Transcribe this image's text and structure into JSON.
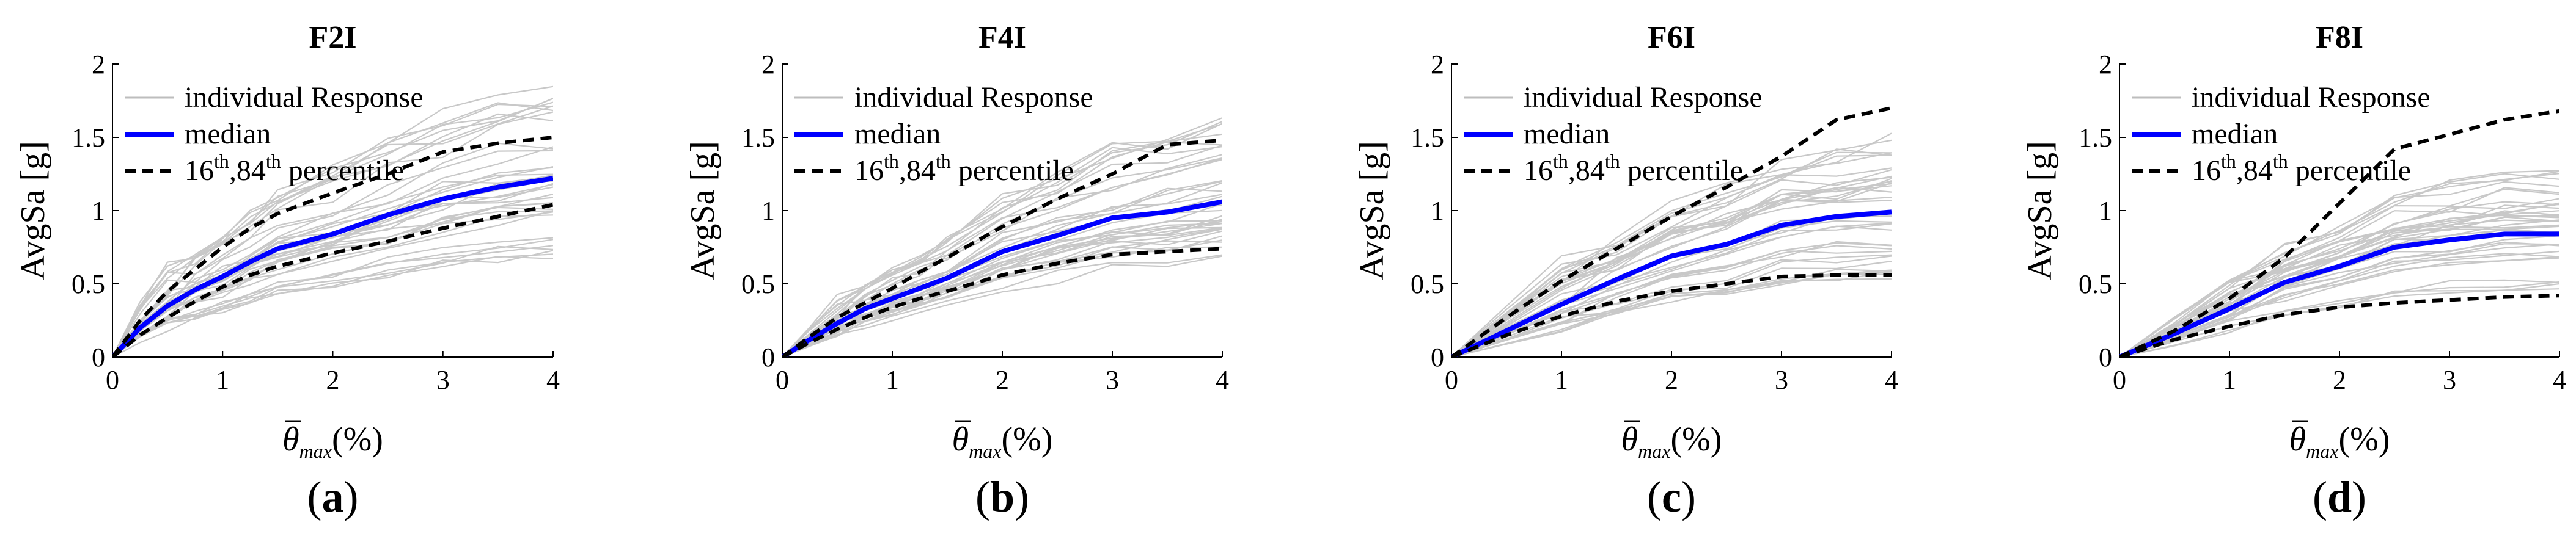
{
  "colors": {
    "individual": "#c8c8c8",
    "median": "#0000ff",
    "percentile": "#000000",
    "axis": "#000000"
  },
  "chart_data": [
    {
      "type": "line",
      "panel_label": "(a)",
      "panel_label_parts": [
        "(",
        "a",
        ")"
      ],
      "title": "F2I",
      "xlabel_symbol": "θ",
      "xlabel_sub": "max",
      "xlabel_unit": "(%)",
      "ylabel": "AvgSa  [g]",
      "xlim": [
        0,
        4
      ],
      "ylim": [
        0,
        2
      ],
      "xticks": [
        "0",
        "1",
        "2",
        "3",
        "4"
      ],
      "yticks": [
        "0",
        "0.5",
        "1",
        "1.5",
        "2"
      ],
      "legend": {
        "position": "top-left",
        "individual": "individual Response",
        "median": "median",
        "percentile_parts": [
          "16",
          "th",
          ",84",
          "th",
          " percentile"
        ]
      },
      "series": [
        {
          "name": "median",
          "x": [
            0,
            0.25,
            0.5,
            0.75,
            1,
            1.25,
            1.5,
            2,
            2.5,
            3,
            3.5,
            4
          ],
          "y": [
            0,
            0.2,
            0.35,
            0.46,
            0.55,
            0.65,
            0.74,
            0.84,
            0.97,
            1.08,
            1.16,
            1.22
          ]
        },
        {
          "name": "84th percentile",
          "x": [
            0,
            0.25,
            0.5,
            0.75,
            1,
            1.25,
            1.5,
            2,
            2.5,
            3,
            3.5,
            4
          ],
          "y": [
            0,
            0.25,
            0.45,
            0.6,
            0.75,
            0.88,
            0.98,
            1.12,
            1.25,
            1.4,
            1.46,
            1.5
          ]
        },
        {
          "name": "16th percentile",
          "x": [
            0,
            0.25,
            0.5,
            0.75,
            1,
            1.25,
            1.5,
            2,
            2.5,
            3,
            3.5,
            4
          ],
          "y": [
            0,
            0.15,
            0.27,
            0.38,
            0.48,
            0.56,
            0.62,
            0.71,
            0.79,
            0.88,
            0.96,
            1.04
          ]
        }
      ]
    },
    {
      "type": "line",
      "panel_label": "(b)",
      "panel_label_parts": [
        "(",
        "b",
        ")"
      ],
      "title": "F4I",
      "xlabel_symbol": "θ",
      "xlabel_sub": "max",
      "xlabel_unit": "(%)",
      "ylabel": "AvgSa  [g]",
      "xlim": [
        0,
        4
      ],
      "ylim": [
        0,
        2
      ],
      "xticks": [
        "0",
        "1",
        "2",
        "3",
        "4"
      ],
      "yticks": [
        "0",
        "0.5",
        "1",
        "1.5",
        "2"
      ],
      "legend": {
        "position": "top-left",
        "individual": "individual Response",
        "median": "median",
        "percentile_parts": [
          "16",
          "th",
          ",84",
          "th",
          " percentile"
        ]
      },
      "series": [
        {
          "name": "median",
          "x": [
            0,
            0.25,
            0.5,
            0.75,
            1,
            1.25,
            1.5,
            2,
            2.5,
            3,
            3.5,
            4
          ],
          "y": [
            0,
            0.12,
            0.23,
            0.33,
            0.4,
            0.47,
            0.54,
            0.72,
            0.83,
            0.95,
            0.99,
            1.06
          ]
        },
        {
          "name": "84th percentile",
          "x": [
            0,
            0.25,
            0.5,
            0.75,
            1,
            1.25,
            1.5,
            2,
            2.5,
            3,
            3.5,
            4
          ],
          "y": [
            0,
            0.14,
            0.27,
            0.37,
            0.47,
            0.58,
            0.68,
            0.89,
            1.08,
            1.25,
            1.45,
            1.48
          ]
        },
        {
          "name": "16th percentile",
          "x": [
            0,
            0.25,
            0.5,
            0.75,
            1,
            1.25,
            1.5,
            2,
            2.5,
            3,
            3.5,
            4
          ],
          "y": [
            0,
            0.1,
            0.19,
            0.27,
            0.34,
            0.4,
            0.45,
            0.56,
            0.64,
            0.7,
            0.72,
            0.74
          ]
        }
      ]
    },
    {
      "type": "line",
      "panel_label": "(c)",
      "panel_label_parts": [
        "(",
        "c",
        ")"
      ],
      "title": "F6I",
      "xlabel_symbol": "θ",
      "xlabel_sub": "max",
      "xlabel_unit": "(%)",
      "ylabel": "AvgSa  [g]",
      "xlim": [
        0,
        4
      ],
      "ylim": [
        0,
        2
      ],
      "xticks": [
        "0",
        "1",
        "2",
        "3",
        "4"
      ],
      "yticks": [
        "0",
        "0.5",
        "1",
        "1.5",
        "2"
      ],
      "legend": {
        "position": "top-left",
        "individual": "individual Response",
        "median": "median",
        "percentile_parts": [
          "16",
          "th",
          ",84",
          "th",
          " percentile"
        ]
      },
      "series": [
        {
          "name": "median",
          "x": [
            0,
            0.5,
            1,
            1.5,
            2,
            2.5,
            3,
            3.5,
            4
          ],
          "y": [
            0,
            0.18,
            0.36,
            0.53,
            0.69,
            0.77,
            0.9,
            0.96,
            0.99
          ]
        },
        {
          "name": "84th percentile",
          "x": [
            0,
            0.5,
            1,
            1.5,
            2,
            2.5,
            3,
            3.5,
            4
          ],
          "y": [
            0,
            0.27,
            0.52,
            0.74,
            0.96,
            1.16,
            1.37,
            1.62,
            1.7
          ]
        },
        {
          "name": "16th percentile",
          "x": [
            0,
            0.5,
            1,
            1.5,
            2,
            2.5,
            3,
            3.5,
            4
          ],
          "y": [
            0,
            0.15,
            0.28,
            0.38,
            0.45,
            0.5,
            0.55,
            0.56,
            0.56
          ]
        }
      ]
    },
    {
      "type": "line",
      "panel_label": "(d)",
      "panel_label_parts": [
        "(",
        "d",
        ")"
      ],
      "title": "F8I",
      "xlabel_symbol": "θ",
      "xlabel_sub": "max",
      "xlabel_unit": "(%)",
      "ylabel": "AvgSa  [g]",
      "xlim": [
        0,
        4
      ],
      "ylim": [
        0,
        2
      ],
      "xticks": [
        "0",
        "1",
        "2",
        "3",
        "4"
      ],
      "yticks": [
        "0",
        "0.5",
        "1",
        "1.5",
        "2"
      ],
      "legend": {
        "position": "top-left",
        "individual": "individual Response",
        "median": "median",
        "percentile_parts": [
          "16",
          "th",
          ",84",
          "th",
          " percentile"
        ]
      },
      "series": [
        {
          "name": "median",
          "x": [
            0,
            0.5,
            1,
            1.5,
            2,
            2.5,
            3,
            3.5,
            4
          ],
          "y": [
            0,
            0.16,
            0.33,
            0.51,
            0.62,
            0.75,
            0.8,
            0.84,
            0.84
          ]
        },
        {
          "name": "84th percentile",
          "x": [
            0,
            0.5,
            1,
            1.5,
            2,
            2.5,
            3,
            3.5,
            4
          ],
          "y": [
            0,
            0.18,
            0.4,
            0.68,
            1.05,
            1.42,
            1.52,
            1.62,
            1.68
          ]
        },
        {
          "name": "16th percentile",
          "x": [
            0,
            0.5,
            1,
            1.5,
            2,
            2.5,
            3,
            3.5,
            4
          ],
          "y": [
            0,
            0.12,
            0.21,
            0.29,
            0.34,
            0.37,
            0.39,
            0.41,
            0.42
          ]
        }
      ]
    }
  ]
}
